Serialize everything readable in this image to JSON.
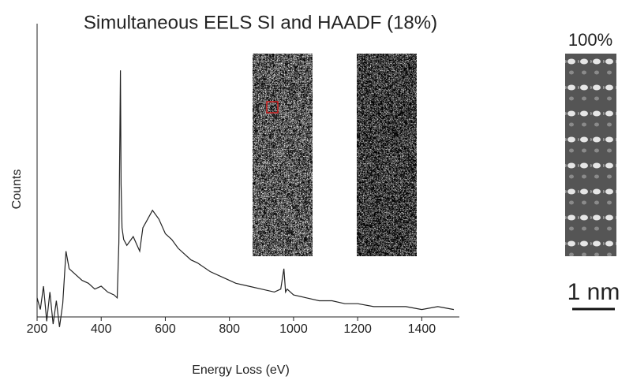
{
  "chart_data": {
    "type": "line",
    "title": "Simultaneous EELS SI and HAADF (18%)",
    "x_label": "Energy Loss (eV)",
    "y_label": "Counts",
    "annotations": [
      "100%",
      "1 nm"
    ],
    "x": [
      200,
      210,
      220,
      230,
      240,
      250,
      260,
      270,
      280,
      290,
      300,
      320,
      340,
      360,
      380,
      400,
      420,
      440,
      450,
      455,
      458,
      460,
      462,
      465,
      470,
      480,
      500,
      520,
      530,
      540,
      560,
      580,
      600,
      620,
      640,
      660,
      680,
      700,
      740,
      780,
      820,
      860,
      900,
      940,
      960,
      970,
      975,
      980,
      1000,
      1040,
      1080,
      1120,
      1160,
      1200,
      1250,
      1300,
      1350,
      1400,
      1450,
      1500
    ],
    "series": [
      {
        "color": "#222222",
        "values": [
          6,
          2,
          10,
          -2,
          8,
          -3,
          5,
          -4,
          4,
          22,
          16,
          14,
          12,
          11,
          9,
          10,
          8,
          7,
          6,
          25,
          60,
          84,
          45,
          30,
          26,
          24,
          27,
          22,
          30,
          32,
          36,
          33,
          28,
          26,
          23,
          21,
          19,
          18,
          15,
          13,
          11,
          10,
          9,
          8,
          9,
          16,
          8,
          9,
          7,
          6,
          5,
          5,
          4,
          4,
          3,
          3,
          3,
          2,
          3,
          2
        ]
      }
    ],
    "xlim": [
      200,
      1500
    ],
    "xticks": [
      200,
      400,
      600,
      800,
      1000,
      1200,
      1400
    ],
    "ylim": [
      0,
      100
    ]
  }
}
